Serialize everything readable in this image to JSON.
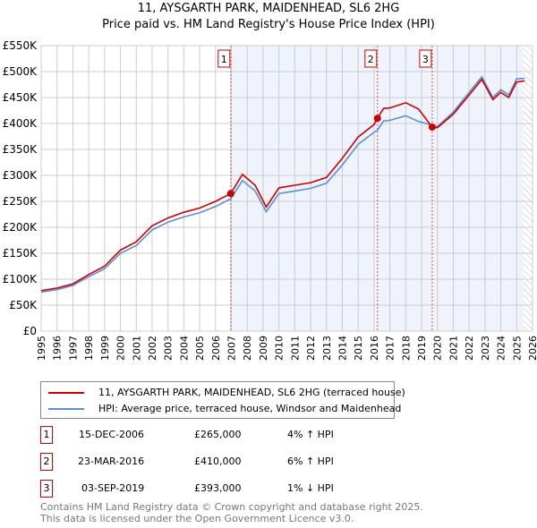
{
  "chart_data": {
    "type": "line",
    "title": "11, AYSGARTH PARK, MAIDENHEAD, SL6 2HG",
    "subtitle": "Price paid vs. HM Land Registry's House Price Index (HPI)",
    "xlim": [
      1995,
      2026
    ],
    "ylim": [
      0,
      550000
    ],
    "yticks": [
      0,
      50000,
      100000,
      150000,
      200000,
      250000,
      300000,
      350000,
      400000,
      450000,
      500000,
      550000
    ],
    "ytick_labels": [
      "£0",
      "£50K",
      "£100K",
      "£150K",
      "£200K",
      "£250K",
      "£300K",
      "£350K",
      "£400K",
      "£450K",
      "£500K",
      "£550K"
    ],
    "xticks": [
      1995,
      1996,
      1997,
      1998,
      1999,
      2000,
      2001,
      2002,
      2003,
      2004,
      2005,
      2006,
      2007,
      2008,
      2009,
      2010,
      2011,
      2012,
      2013,
      2014,
      2015,
      2016,
      2017,
      2018,
      2019,
      2020,
      2021,
      2022,
      2023,
      2024,
      2025,
      2026
    ],
    "grid": true,
    "series": [
      {
        "name": "11, AYSGARTH PARK, MAIDENHEAD, SL6 2HG (terraced house)",
        "color": "#cc0000",
        "x": [
          1995,
          1996,
          1997,
          1998,
          1999,
          2000,
          2001,
          2002,
          2003,
          2004,
          2005,
          2006,
          2006.96,
          2007.7,
          2008.5,
          2009.2,
          2010,
          2011,
          2012,
          2013,
          2014,
          2015,
          2016,
          2016.22,
          2016.6,
          2017,
          2018,
          2018.8,
          2019.67,
          2020,
          2021,
          2022,
          2022.8,
          2023.5,
          2024,
          2024.5,
          2025,
          2025.5
        ],
        "y": [
          78000,
          83000,
          91000,
          109000,
          125000,
          156000,
          172000,
          203000,
          218000,
          229000,
          237000,
          250000,
          265000,
          302000,
          281000,
          239000,
          276000,
          281000,
          286000,
          296000,
          333000,
          374000,
          398000,
          410000,
          429000,
          430000,
          440000,
          428000,
          393000,
          392000,
          418000,
          455000,
          485000,
          446000,
          460000,
          450000,
          480000,
          482000
        ]
      },
      {
        "name": "HPI: Average price, terraced house, Windsor and Maidenhead",
        "color": "#5b8fd4",
        "x": [
          1995,
          1996,
          1997,
          1998,
          1999,
          2000,
          2001,
          2002,
          2003,
          2004,
          2005,
          2006,
          2006.96,
          2007.7,
          2008.5,
          2009.2,
          2010,
          2011,
          2012,
          2013,
          2014,
          2015,
          2016,
          2016.22,
          2016.6,
          2017,
          2018,
          2018.8,
          2019.67,
          2020,
          2021,
          2022,
          2022.8,
          2023.5,
          2024,
          2024.5,
          2025,
          2025.5
        ],
        "y": [
          75000,
          80000,
          88000,
          105000,
          120000,
          150000,
          165000,
          195000,
          210000,
          220000,
          228000,
          240000,
          255000,
          290000,
          270000,
          230000,
          265000,
          270000,
          275000,
          285000,
          320000,
          360000,
          383000,
          387000,
          405000,
          406000,
          415000,
          404000,
          397000,
          394000,
          422000,
          460000,
          490000,
          450000,
          465000,
          455000,
          486000,
          487000
        ]
      }
    ],
    "sales": [
      {
        "label": "1",
        "x": 2006.96,
        "y": 265000,
        "date": "15-DEC-2006",
        "price": "£265,000",
        "hpi": "4% ↑ HPI"
      },
      {
        "label": "2",
        "x": 2016.22,
        "y": 410000,
        "date": "23-MAR-2016",
        "price": "£410,000",
        "hpi": "6% ↑ HPI"
      },
      {
        "label": "3",
        "x": 2019.67,
        "y": 393000,
        "date": "03-SEP-2019",
        "price": "£393,000",
        "hpi": "1% ↓ HPI"
      }
    ]
  },
  "footer": [
    "Contains HM Land Registry data © Crown copyright and database right 2025.",
    "This data is licensed under the Open Government Licence v3.0."
  ]
}
